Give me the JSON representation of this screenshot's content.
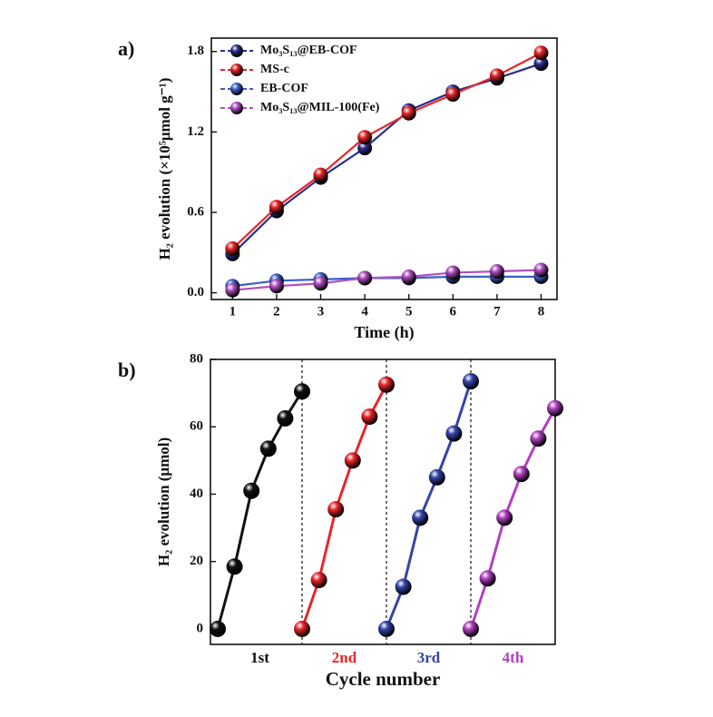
{
  "chart_data": [
    {
      "type": "line",
      "panel_label": "a)",
      "xlabel": "Time (h)",
      "ylabel": "H₂ evolution (×10⁵μmol g⁻¹)",
      "x": [
        1,
        2,
        3,
        4,
        5,
        6,
        7,
        8
      ],
      "xlim": [
        0.52,
        8.36
      ],
      "xticks": [
        1,
        2,
        3,
        4,
        5,
        6,
        7,
        8
      ],
      "ylim": [
        -0.05,
        1.9
      ],
      "yticks": [
        {
          "value": 0,
          "label": "0.0"
        },
        {
          "value": 0.6,
          "label": "0.6"
        },
        {
          "value": 1.2,
          "label": "1.2"
        },
        {
          "value": 1.8,
          "label": "1.8"
        }
      ],
      "legend": "upper left",
      "series": [
        {
          "name": "Mo₃S₁₃@EB-COF",
          "color": "#2b2f8c",
          "values": [
            0.29,
            0.61,
            0.86,
            1.08,
            1.36,
            1.5,
            1.6,
            1.71
          ]
        },
        {
          "name": "MS-c",
          "color": "#e8262a",
          "values": [
            0.33,
            0.64,
            0.88,
            1.16,
            1.34,
            1.48,
            1.62,
            1.79
          ]
        },
        {
          "name": "EB-COF",
          "color": "#3a5fc8",
          "values": [
            0.05,
            0.09,
            0.1,
            0.11,
            0.11,
            0.12,
            0.12,
            0.12
          ]
        },
        {
          "name": "Mo₃S₁₃@MIL-100(Fe)",
          "color": "#b04fc0",
          "values": [
            0.02,
            0.05,
            0.07,
            0.11,
            0.12,
            0.15,
            0.16,
            0.17
          ]
        }
      ]
    },
    {
      "type": "cycle",
      "panel_label": "b)",
      "xlabel": "Cycle number",
      "ylabel": "H₂ evolution (μmol)",
      "categories": [
        "1st",
        "2nd",
        "3rd",
        "4th"
      ],
      "xlim": [
        -0.43,
        20
      ],
      "dividers": [
        5,
        10,
        15
      ],
      "ylim": [
        -4.6,
        80
      ],
      "yticks": [
        0,
        20,
        40,
        60,
        80
      ],
      "series": [
        {
          "color": "#111111",
          "x": [
            0,
            1,
            2,
            3,
            4,
            5
          ],
          "values": [
            0,
            18.5,
            41,
            53.5,
            62.5,
            70.5
          ]
        },
        {
          "color": "#e8262a",
          "x": [
            5,
            6,
            7,
            8,
            9,
            10
          ],
          "values": [
            0,
            14.5,
            35.5,
            50,
            63,
            72.5
          ]
        },
        {
          "color": "#3444a8",
          "x": [
            10,
            11,
            12,
            13,
            14,
            15
          ],
          "values": [
            0,
            12.5,
            33,
            45,
            58,
            73.5
          ]
        },
        {
          "color": "#b040c0",
          "x": [
            15,
            16,
            17,
            18,
            19,
            20
          ],
          "values": [
            0,
            15,
            33,
            46,
            56.5,
            65.5
          ]
        }
      ]
    }
  ]
}
